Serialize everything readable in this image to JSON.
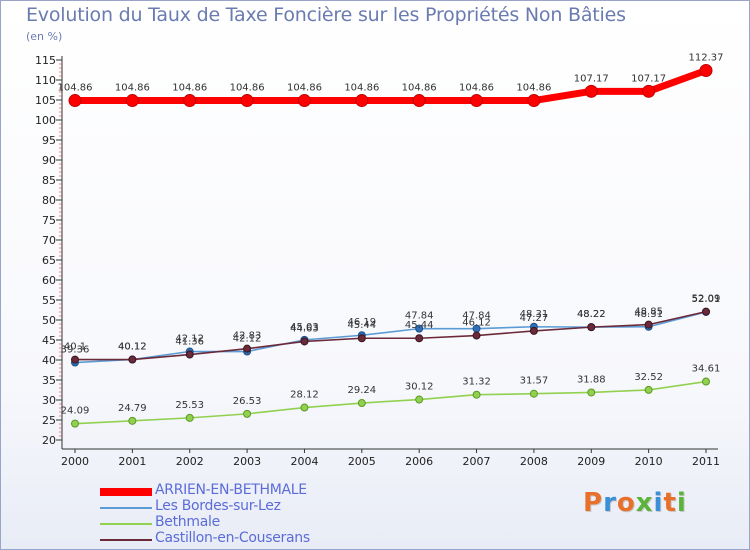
{
  "header": {
    "title": "Evolution du Taux de Taxe Foncière sur les Propriétés Non Bâties",
    "subtitle": "(en %)"
  },
  "chart_data": {
    "type": "line",
    "title": "Evolution du Taux de Taxe Foncière sur les Propriétés Non Bâties",
    "ylabel": "(en %)",
    "xlabel": "",
    "x": [
      "2000",
      "2001",
      "2002",
      "2003",
      "2004",
      "2005",
      "2006",
      "2007",
      "2008",
      "2009",
      "2010",
      "2011"
    ],
    "ylim": [
      20,
      115
    ],
    "yticks": [
      20,
      25,
      30,
      35,
      40,
      45,
      50,
      55,
      60,
      65,
      70,
      75,
      80,
      85,
      90,
      95,
      100,
      105,
      110,
      115
    ],
    "grid": false,
    "legend_position": "bottom-left",
    "series": [
      {
        "name": "ARRIEN-EN-BETHMALE",
        "color": "#ff0000",
        "values": [
          104.86,
          104.86,
          104.86,
          104.86,
          104.86,
          104.86,
          104.86,
          104.86,
          104.86,
          107.17,
          107.17,
          112.37
        ],
        "labels": [
          "104.86",
          "104.86",
          "104.86",
          "104.86",
          "104.86",
          "104.86",
          "104.86",
          "104.86",
          "104.86",
          "107.17",
          "107.17",
          "112.37"
        ]
      },
      {
        "name": "Les Bordes-sur-Lez",
        "color": "#5b9bd5",
        "values": [
          39.36,
          40.12,
          42.12,
          42.12,
          45.03,
          46.19,
          47.84,
          47.84,
          48.31,
          48.22,
          48.31,
          52.01
        ],
        "labels": [
          "39.36",
          "40.12",
          "42.12",
          "42.12",
          "45.03",
          "46.19",
          "47.84",
          "47.84",
          "48.31",
          "48.22",
          "48.31",
          "52.01"
        ]
      },
      {
        "name": "Bethmale",
        "color": "#92d050",
        "values": [
          24.09,
          24.79,
          25.53,
          26.53,
          28.12,
          29.24,
          30.12,
          31.32,
          31.57,
          31.88,
          32.52,
          34.61
        ],
        "labels": [
          "24.09",
          "24.79",
          "25.53",
          "26.53",
          "28.12",
          "29.24",
          "30.12",
          "31.32",
          "31.57",
          "31.88",
          "32.52",
          "34.61"
        ]
      },
      {
        "name": "Castillon-en-Couserans",
        "color": "#6b2a3a",
        "values": [
          40.1,
          40.12,
          41.36,
          42.83,
          44.63,
          45.44,
          45.44,
          46.12,
          47.27,
          48.22,
          48.85,
          52.09
        ],
        "labels": [
          "40.1",
          "40.12",
          "41.36",
          "42.83",
          "44.63",
          "45.44",
          "45.44",
          "46.12",
          "47.27",
          "48.22",
          "48.85",
          "52.09"
        ]
      }
    ]
  },
  "brand": {
    "logo_text": "Proxiti",
    "logo_colors": [
      "#e8702a",
      "#3a8fd6",
      "#e8702a",
      "#5ab43c",
      "#3a8fd6",
      "#e8702a",
      "#5ab43c"
    ]
  }
}
